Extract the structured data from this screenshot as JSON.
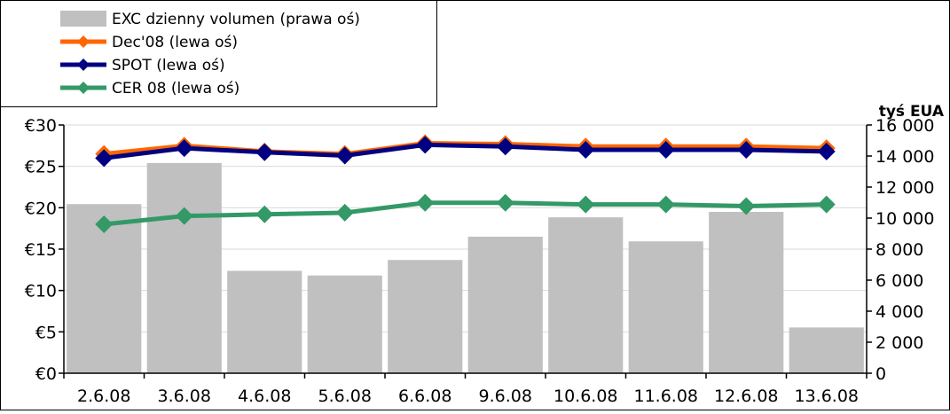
{
  "chart_data": {
    "type": "bar",
    "categories": [
      "2.6.08",
      "3.6.08",
      "4.6.08",
      "5.6.08",
      "6.6.08",
      "9.6.08",
      "10.6.08",
      "11.6.08",
      "12.6.08",
      "13.6.08"
    ],
    "y_left": {
      "ticks": [
        "€0",
        "€5",
        "€10",
        "€15",
        "€20",
        "€25",
        "€30"
      ],
      "ylim": [
        0,
        30
      ]
    },
    "y_right": {
      "label": "tyś EUA",
      "ticks": [
        "0",
        "2 000",
        "4 000",
        "6 000",
        "8 000",
        "10 000",
        "12 000",
        "14 000",
        "16 000"
      ],
      "ylim": [
        0,
        16000
      ]
    },
    "series": [
      {
        "name": "EXC dzienny volumen (prawa oś)",
        "type": "bar",
        "axis": "right",
        "color": "#c0c0c0",
        "values": [
          10900,
          13550,
          6600,
          6300,
          7300,
          8800,
          10050,
          8500,
          10400,
          2950
        ]
      },
      {
        "name": "Dec'08 (lewa oś)",
        "type": "line",
        "axis": "left",
        "color": "#ff6600",
        "values": [
          26.5,
          27.5,
          26.8,
          26.5,
          27.8,
          27.7,
          27.4,
          27.4,
          27.4,
          27.2
        ]
      },
      {
        "name": "SPOT (lewa oś)",
        "type": "line",
        "axis": "left",
        "color": "#000080",
        "values": [
          26.0,
          27.2,
          26.7,
          26.3,
          27.6,
          27.4,
          27.0,
          27.0,
          27.0,
          26.8
        ]
      },
      {
        "name": "CER 08 (lewa oś)",
        "type": "line",
        "axis": "left",
        "color": "#339966",
        "values": [
          18.0,
          19.0,
          19.2,
          19.4,
          20.6,
          20.6,
          20.4,
          20.4,
          20.2,
          20.4
        ]
      }
    ],
    "grid": true,
    "legend_position": "top-left"
  }
}
